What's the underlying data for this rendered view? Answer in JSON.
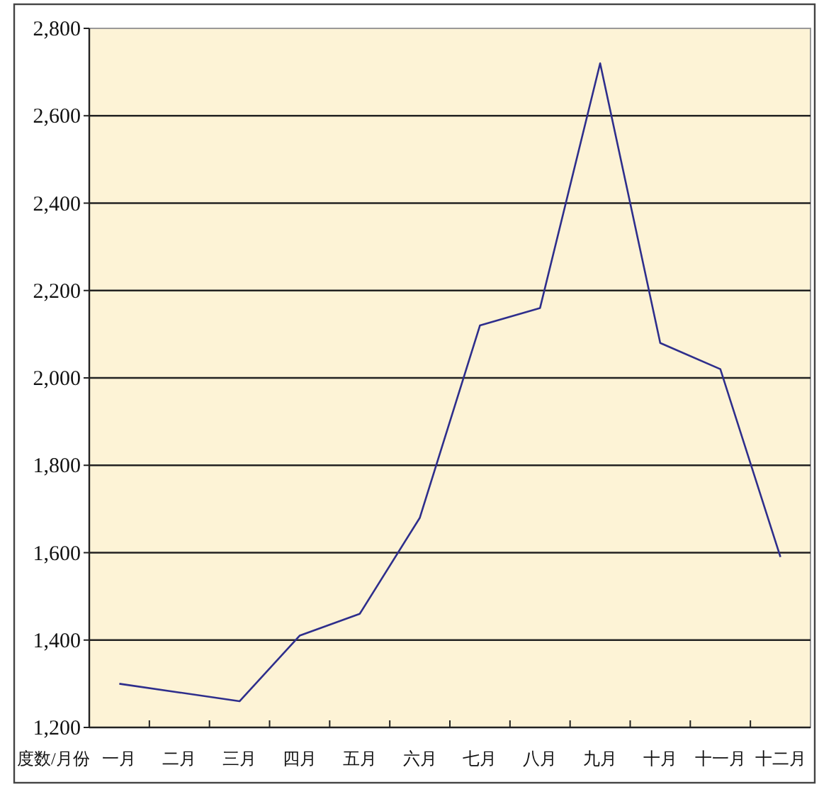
{
  "chart_data": {
    "type": "line",
    "xlabel": "度数/月份",
    "categories": [
      "一月",
      "二月",
      "三月",
      "四月",
      "五月",
      "六月",
      "七月",
      "八月",
      "九月",
      "十月",
      "十一月",
      "十二月"
    ],
    "series": [
      {
        "color": "#2e2e8c",
        "values": [
          1300,
          1280,
          1260,
          1410,
          1460,
          1680,
          2120,
          2160,
          2720,
          2080,
          2020,
          1590
        ]
      }
    ],
    "ylim": [
      1200,
      2800
    ],
    "yticks": [
      {
        "value": 1200,
        "label": "1,200"
      },
      {
        "value": 1400,
        "label": "1,400"
      },
      {
        "value": 1600,
        "label": "1,600"
      },
      {
        "value": 1800,
        "label": "1,800"
      },
      {
        "value": 2000,
        "label": "2,000"
      },
      {
        "value": 2200,
        "label": "2,200"
      },
      {
        "value": 2400,
        "label": "2,400"
      },
      {
        "value": 2600,
        "label": "2,600"
      },
      {
        "value": 2800,
        "label": "2,800"
      }
    ],
    "grid": "y",
    "marker": "none",
    "line_style": "solid"
  }
}
